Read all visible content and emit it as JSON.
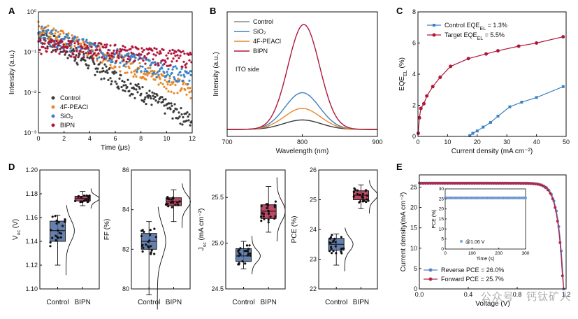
{
  "colors": {
    "control": "#3a3a3a",
    "peacl": "#e8882a",
    "sio2": "#3b82c4",
    "bipn": "#b0163a",
    "box_control": "#4a6a9e",
    "box_bipn": "#b0294a",
    "reverse": "#5b7ec4",
    "forward": "#b0294a"
  },
  "watermark": "公众号 · 钙钛矿人",
  "chart_data": [
    {
      "id": "A",
      "type": "scatter",
      "label": "A",
      "xlabel": "Time (μs)",
      "ylabel": "Intensity (a.u.)",
      "xlim": [
        0,
        12
      ],
      "ylim": [
        0.001,
        1
      ],
      "yscale": "log",
      "xticks": [
        "0",
        "2",
        "4",
        "6",
        "8",
        "10",
        "12"
      ],
      "yticks": [
        "10⁰",
        "10⁻¹",
        "10⁻²",
        "10⁻³"
      ],
      "legend": [
        "Control",
        "4F-PEACl",
        "SiO₂",
        "BIPN"
      ],
      "series": [
        {
          "name": "Control",
          "A": 0.3,
          "tau": 2.4,
          "floor": 0.001
        },
        {
          "name": "4F-PEACl",
          "A": 0.42,
          "tau": 3.3,
          "floor": 0.002
        },
        {
          "name": "SiO₂",
          "A": 0.32,
          "tau": 4.6,
          "floor": 0.003
        },
        {
          "name": "BIPN",
          "A": 0.16,
          "tau": 15,
          "floor": 0.001
        }
      ]
    },
    {
      "id": "B",
      "type": "line",
      "label": "B",
      "xlabel": "Wavelength (nm)",
      "ylabel": "Intensity (a.u.)",
      "xlim": [
        700,
        900
      ],
      "xticks": [
        "700",
        "800",
        "900"
      ],
      "annotation": "ITO side",
      "legend": [
        "Control",
        "SiO₂",
        "4F-PEACl",
        "BIPN"
      ],
      "series": [
        {
          "name": "Control",
          "peak": 800,
          "amplitude": 0.09,
          "width": 25
        },
        {
          "name": "SiO₂",
          "peak": 800,
          "amplitude": 0.35,
          "width": 23
        },
        {
          "name": "4F-PEACl",
          "peak": 800,
          "amplitude": 0.2,
          "width": 24
        },
        {
          "name": "BIPN",
          "peak": 802,
          "amplitude": 1.0,
          "width": 21
        }
      ]
    },
    {
      "id": "C",
      "type": "line",
      "label": "C",
      "xlabel": "Current density (mA cm⁻²)",
      "ylabel": "EQE_EL (%)",
      "xlim": [
        0,
        50
      ],
      "ylim": [
        0,
        8
      ],
      "xticks": [
        "0",
        "10",
        "20",
        "30",
        "40",
        "50"
      ],
      "yticks": [
        "0",
        "2",
        "4",
        "6",
        "8"
      ],
      "series": [
        {
          "name": "Control EQE_EL = 1.3%",
          "x": [
            17.5,
            18.5,
            20,
            22,
            24.5,
            27,
            31,
            35,
            40,
            49
          ],
          "y": [
            0.05,
            0.2,
            0.35,
            0.6,
            0.9,
            1.3,
            1.9,
            2.2,
            2.5,
            3.2
          ]
        },
        {
          "name": "Target EQE_EL = 5.5%",
          "x": [
            0.1,
            0.5,
            1,
            2,
            3,
            5,
            7.5,
            11,
            17,
            23,
            27,
            34,
            40,
            49
          ],
          "y": [
            0.2,
            1.2,
            1.8,
            2.1,
            2.6,
            3.2,
            3.8,
            4.5,
            5.0,
            5.3,
            5.5,
            5.8,
            6.0,
            6.4
          ]
        }
      ]
    },
    {
      "id": "D",
      "type": "box",
      "label": "D",
      "categories": [
        "Control",
        "BIPN"
      ],
      "subplots": [
        {
          "ylabel": "V_oc (V)",
          "ylim": [
            1.1,
            1.2
          ],
          "yticks": [
            "1.10",
            "1.12",
            "1.14",
            "1.16",
            "1.18",
            "1.20"
          ],
          "Control": {
            "q1": 1.14,
            "median": 1.149,
            "q3": 1.157,
            "min": 1.12,
            "max": 1.162
          },
          "BIPN": {
            "q1": 1.174,
            "median": 1.176,
            "q3": 1.178,
            "min": 1.17,
            "max": 1.182
          }
        },
        {
          "ylabel": "FF (%)",
          "ylim": [
            80,
            86
          ],
          "yticks": [
            "80",
            "82",
            "84",
            "86"
          ],
          "Control": {
            "q1": 82.0,
            "median": 82.4,
            "q3": 82.8,
            "min": 79.7,
            "max": 83.4
          },
          "BIPN": {
            "q1": 84.2,
            "median": 84.4,
            "q3": 84.6,
            "min": 83.4,
            "max": 85.0
          }
        },
        {
          "ylabel": "J_sc (mA cm⁻²)",
          "ylim": [
            24.5,
            25.8
          ],
          "yticks": [
            "24.5",
            "25.0",
            "25.5"
          ],
          "Control": {
            "q1": 24.8,
            "median": 24.86,
            "q3": 24.94,
            "min": 24.72,
            "max": 25.02
          },
          "BIPN": {
            "q1": 25.27,
            "median": 25.35,
            "q3": 25.42,
            "min": 25.12,
            "max": 25.62
          }
        },
        {
          "ylabel": "PCE (%)",
          "ylim": [
            22,
            26
          ],
          "yticks": [
            "22",
            "23",
            "24",
            "25",
            "26"
          ],
          "Control": {
            "q1": 23.3,
            "median": 23.5,
            "q3": 23.7,
            "min": 22.8,
            "max": 23.85
          },
          "BIPN": {
            "q1": 25.0,
            "median": 25.15,
            "q3": 25.3,
            "min": 24.7,
            "max": 25.5
          }
        }
      ]
    },
    {
      "id": "E",
      "type": "line",
      "label": "E",
      "xlabel": "Voltage (V)",
      "ylabel": "Current density(mA cm⁻²)",
      "xlim": [
        0,
        1.2
      ],
      "ylim": [
        0,
        26
      ],
      "xticks": [
        "0.0",
        "0.4",
        "0.8",
        "1.2"
      ],
      "yticks": [
        "0",
        "5",
        "10",
        "15",
        "20",
        "25"
      ],
      "legend": [
        "Reverse PCE = 26.0%",
        "Forward PCE = 25.7%"
      ],
      "jv": {
        "jsc": 26.0,
        "voc": 1.18
      },
      "inset": {
        "xlabel": "Time (s)",
        "ylabel": "PCE (%)",
        "xlim": [
          0,
          300
        ],
        "ylim": [
          0,
          30
        ],
        "xticks": [
          "0",
          "100",
          "200",
          "300"
        ],
        "yticks": [
          "0",
          "5",
          "10",
          "15",
          "20",
          "25",
          "30"
        ],
        "value": 25.5,
        "annotation": "@1.06 V"
      }
    }
  ]
}
